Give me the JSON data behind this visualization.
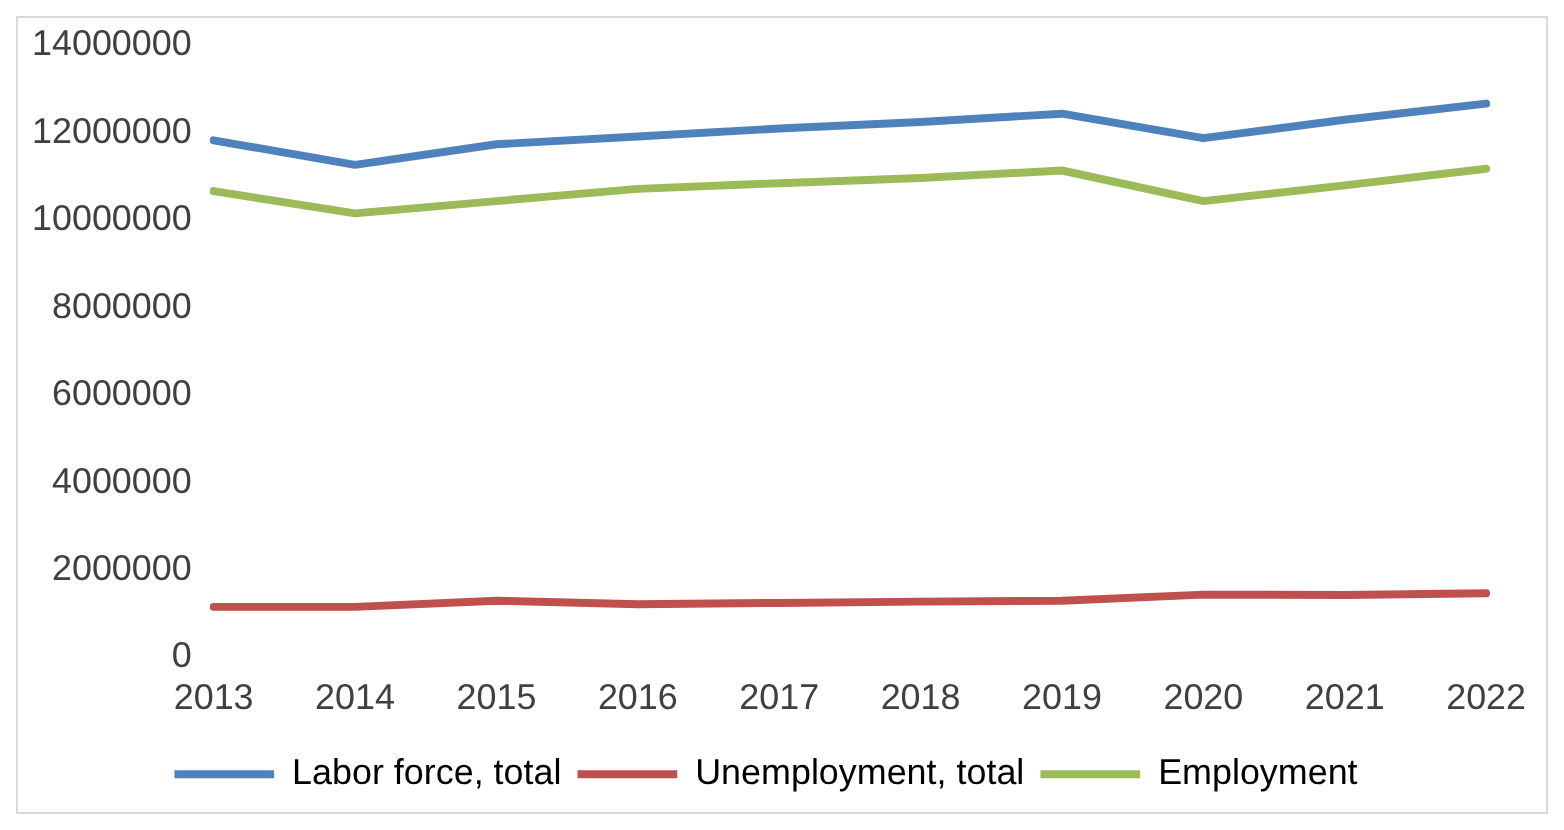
{
  "chart_data": {
    "type": "line",
    "categories": [
      "2013",
      "2014",
      "2015",
      "2016",
      "2017",
      "2018",
      "2019",
      "2020",
      "2021",
      "2022"
    ],
    "series": [
      {
        "name": "Labor force, total",
        "color": "#4f81bd",
        "values": [
          11830000,
          11270000,
          11740000,
          11920000,
          12100000,
          12250000,
          12440000,
          11880000,
          12300000,
          12670000
        ]
      },
      {
        "name": "Unemployment, total",
        "color": "#c0504d",
        "values": [
          1160000,
          1160000,
          1300000,
          1220000,
          1250000,
          1280000,
          1300000,
          1440000,
          1430000,
          1470000
        ]
      },
      {
        "name": "Employment",
        "color": "#9bbb59",
        "values": [
          10670000,
          10160000,
          10440000,
          10720000,
          10850000,
          10970000,
          11140000,
          10440000,
          10800000,
          11180000
        ]
      }
    ],
    "ylim": [
      0,
      14000000
    ],
    "yticks": [
      0,
      2000000,
      4000000,
      6000000,
      8000000,
      10000000,
      12000000,
      14000000
    ],
    "grid": false,
    "legend": "bottom",
    "marker": "none",
    "line_style": "solid"
  }
}
